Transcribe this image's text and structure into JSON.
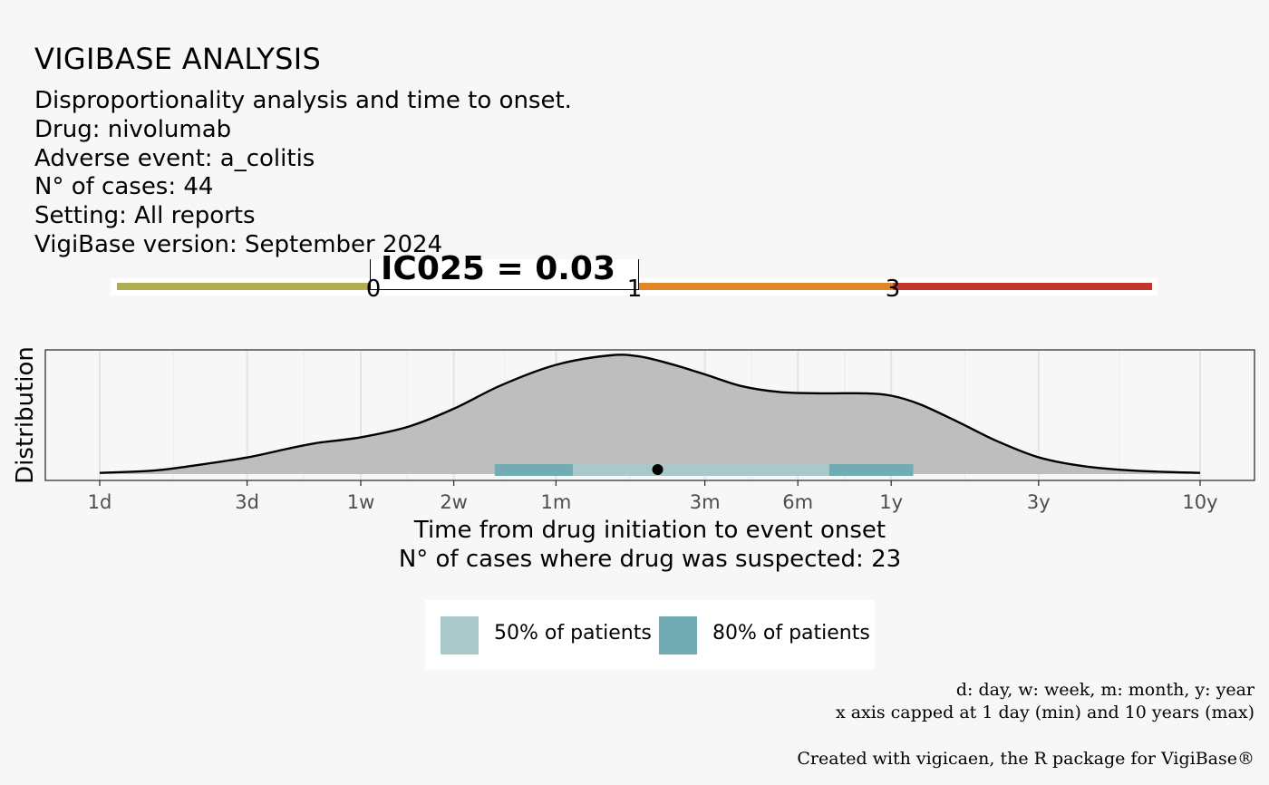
{
  "header": {
    "title": "VIGIBASE ANALYSIS",
    "subtitle_lines": [
      "Disproportionality analysis and time to onset.",
      "Drug: nivolumab",
      "Adverse event: a_colitis",
      "N° of cases: 44",
      "Setting: All reports",
      "VigiBase version: September 2024"
    ]
  },
  "ic_scale": {
    "label": "IC025 = 0.03",
    "value": 0.03,
    "ticks": [
      "0",
      "1",
      "3"
    ],
    "segments": [
      {
        "from": "min",
        "to": "0",
        "color": "#b0ae52"
      },
      {
        "from": "1",
        "to": "3",
        "color": "#e08628"
      },
      {
        "from": "3",
        "to": "max",
        "color": "#c0362c"
      }
    ]
  },
  "chart_data": {
    "type": "area",
    "ylabel": "Distribution",
    "xlabel_lines": [
      "Time from drug initiation to event onset",
      "N° of cases where drug was suspected: 23"
    ],
    "x_scale": "log",
    "x_unit": "days",
    "xlim": [
      1,
      3650
    ],
    "x_ticks": [
      {
        "label": "1d",
        "days": 1
      },
      {
        "label": "3d",
        "days": 3
      },
      {
        "label": "1w",
        "days": 7
      },
      {
        "label": "2w",
        "days": 14
      },
      {
        "label": "1m",
        "days": 30
      },
      {
        "label": "3m",
        "days": 91
      },
      {
        "label": "6m",
        "days": 182
      },
      {
        "label": "1y",
        "days": 365
      },
      {
        "label": "3y",
        "days": 1095
      },
      {
        "label": "10y",
        "days": 3650
      }
    ],
    "density": {
      "x_days": [
        1,
        1.5,
        2,
        3,
        4,
        5,
        7,
        10,
        14,
        20,
        30,
        45,
        56,
        70,
        91,
        120,
        160,
        220,
        300,
        365,
        450,
        600,
        800,
        1100,
        1500,
        2200,
        3650
      ],
      "y": [
        0.01,
        0.03,
        0.07,
        0.14,
        0.21,
        0.26,
        0.31,
        0.4,
        0.55,
        0.75,
        0.92,
        1.0,
        0.99,
        0.93,
        0.84,
        0.74,
        0.69,
        0.68,
        0.68,
        0.66,
        0.59,
        0.44,
        0.28,
        0.14,
        0.07,
        0.03,
        0.01
      ]
    },
    "median_days": 64,
    "range_80": [
      19,
      430
    ],
    "range_50": [
      34,
      230
    ],
    "legend": [
      {
        "label": "50% of patients",
        "color": "#a9c8c9"
      },
      {
        "label": "80% of patients",
        "color": "#71acb4"
      }
    ],
    "legend_position": "bottom",
    "grid": true
  },
  "caption": {
    "lines": [
      "d: day, w: week, m: month, y: year",
      "x axis capped at 1 day (min) and 10 years (max)"
    ],
    "credit": "Created with vigicaen, the R package for VigiBase®"
  }
}
